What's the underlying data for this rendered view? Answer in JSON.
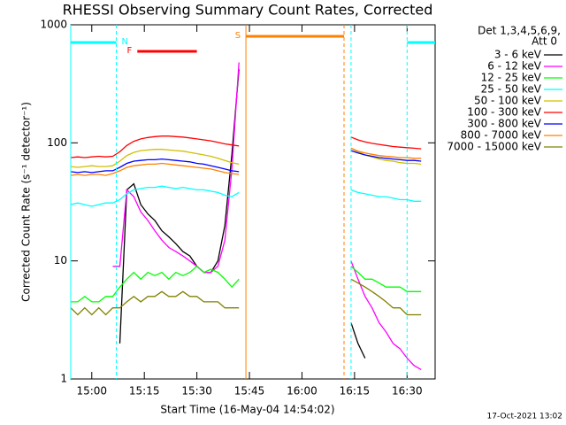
{
  "chart_data": {
    "type": "line",
    "title": "RHESSI Observing Summary Count Rates, Corrected",
    "xlabel": "Start Time (16-May-04 14:54:02)",
    "ylabel": "Corrected Count Rate (s⁻¹ detector⁻¹)",
    "legend_header": [
      "Det 1,3,4,5,6,9,",
      "Att 0"
    ],
    "footer": "17-Oct-2021 13:02",
    "log_y": true,
    "legend": "right",
    "xlim": [
      "14:54",
      "16:38"
    ],
    "xticks": [
      "15:00",
      "15:15",
      "15:30",
      "15:45",
      "16:00",
      "16:15",
      "16:30"
    ],
    "ylim": [
      1,
      1000
    ],
    "yticks": [
      1,
      10,
      100,
      1000
    ],
    "x": [
      "14:54",
      "14:56",
      "14:58",
      "15:00",
      "15:02",
      "15:04",
      "15:06",
      "15:08",
      "15:10",
      "15:12",
      "15:14",
      "15:16",
      "15:18",
      "15:20",
      "15:22",
      "15:24",
      "15:26",
      "15:28",
      "15:30",
      "15:32",
      "15:34",
      "15:36",
      "15:38",
      "15:40",
      "15:42",
      "15:58",
      "16:14",
      "16:16",
      "16:18",
      "16:20",
      "16:22",
      "16:24",
      "16:26",
      "16:28",
      "16:30",
      "16:32",
      "16:34"
    ],
    "series": [
      {
        "name": "3 - 6 keV",
        "color": "#000000",
        "values": [
          null,
          null,
          null,
          null,
          null,
          null,
          null,
          2,
          40,
          45,
          30,
          25,
          22,
          18,
          16,
          14,
          12,
          11,
          9,
          8,
          8,
          10,
          20,
          80,
          420,
          null,
          3,
          2,
          1.5,
          null,
          null,
          null,
          null,
          null,
          null,
          null,
          null
        ]
      },
      {
        "name": "6 - 12 keV",
        "color": "#ff00ff",
        "values": [
          null,
          null,
          null,
          null,
          null,
          null,
          9,
          9,
          40,
          35,
          26,
          22,
          18,
          15,
          13,
          12,
          11,
          10,
          9,
          8,
          8,
          9,
          15,
          60,
          480,
          null,
          10,
          7,
          5,
          4,
          3,
          2.5,
          2,
          1.8,
          1.5,
          1.3,
          1.2
        ]
      },
      {
        "name": "12 - 25 keV",
        "color": "#00ff00",
        "values": [
          4.5,
          4.5,
          5,
          4.5,
          4.5,
          5,
          5,
          6,
          7,
          8,
          7,
          8,
          7.5,
          8,
          7,
          8,
          7.5,
          8,
          9,
          8,
          8.5,
          8,
          7,
          6,
          7,
          null,
          9,
          8,
          7,
          7,
          6.5,
          6,
          6,
          6,
          5.5,
          5.5,
          5.5
        ]
      },
      {
        "name": "25 - 50 keV",
        "color": "#00ffff",
        "values": [
          30,
          31,
          30,
          29,
          30,
          31,
          31,
          33,
          37,
          40,
          41,
          42,
          42,
          43,
          42,
          41,
          42,
          41,
          40,
          40,
          39,
          38,
          36,
          35,
          38,
          null,
          40,
          38,
          37,
          36,
          35,
          35,
          34,
          33,
          33,
          32,
          32
        ]
      },
      {
        "name": "50 - 100 keV",
        "color": "#d0c000",
        "values": [
          63,
          62,
          63,
          64,
          63,
          63,
          64,
          70,
          78,
          83,
          86,
          87,
          88,
          88,
          87,
          86,
          85,
          83,
          81,
          79,
          77,
          74,
          71,
          68,
          66,
          null,
          90,
          84,
          79,
          76,
          73,
          71,
          70,
          68,
          67,
          67,
          66
        ]
      },
      {
        "name": "100 - 300 keV",
        "color": "#ff0000",
        "values": [
          75,
          76,
          75,
          76,
          77,
          76,
          77,
          84,
          95,
          103,
          108,
          111,
          113,
          114,
          114,
          113,
          112,
          110,
          108,
          106,
          104,
          101,
          98,
          96,
          94,
          null,
          112,
          106,
          102,
          99,
          97,
          95,
          93,
          92,
          91,
          90,
          89
        ]
      },
      {
        "name": "300 - 800 keV",
        "color": "#0000ff",
        "values": [
          57,
          56,
          57,
          56,
          57,
          58,
          58,
          62,
          67,
          70,
          71,
          72,
          72,
          73,
          72,
          71,
          70,
          69,
          67,
          66,
          64,
          62,
          60,
          58,
          57,
          null,
          86,
          82,
          79,
          77,
          75,
          74,
          73,
          72,
          71,
          71,
          70
        ]
      },
      {
        "name": "800 - 7000 keV",
        "color": "#ff8000",
        "values": [
          53,
          54,
          53,
          54,
          54,
          53,
          55,
          58,
          62,
          64,
          65,
          66,
          66,
          67,
          66,
          65,
          64,
          63,
          62,
          61,
          60,
          58,
          56,
          55,
          54,
          null,
          90,
          85,
          82,
          80,
          78,
          77,
          76,
          75,
          75,
          74,
          74
        ]
      },
      {
        "name": "7000 - 15000 keV",
        "color": "#808000",
        "values": [
          4,
          3.5,
          4,
          3.5,
          4,
          3.5,
          4,
          4,
          4.5,
          5,
          4.5,
          5,
          5,
          5.5,
          5,
          5,
          5.5,
          5,
          5,
          4.5,
          4.5,
          4.5,
          4,
          4,
          4,
          null,
          7,
          6.5,
          6,
          5.5,
          5,
          4.5,
          4,
          4,
          3.5,
          3.5,
          3.5
        ]
      }
    ],
    "bars": [
      {
        "start": "14:54",
        "end": "15:07",
        "color": "#00ffff"
      },
      {
        "start": "16:30",
        "end": "16:38",
        "color": "#00ffff"
      },
      {
        "start": "15:13",
        "end": "15:30",
        "color": "#ff0000",
        "label": "F"
      },
      {
        "start": "15:44",
        "end": "16:12",
        "color": "#ff8000",
        "label": "S"
      }
    ],
    "vlines": [
      {
        "time": "14:54",
        "color": "#00ffff",
        "dash": false
      },
      {
        "time": "15:07",
        "color": "#00ffff",
        "dash": true,
        "label": "N"
      },
      {
        "time": "16:14",
        "color": "#00ffff",
        "dash": true
      },
      {
        "time": "16:30",
        "color": "#00ffff",
        "dash": true
      },
      {
        "time": "15:44",
        "color": "#ff8000",
        "dash": false
      },
      {
        "time": "16:12",
        "color": "#ff8000",
        "dash": true
      }
    ]
  }
}
